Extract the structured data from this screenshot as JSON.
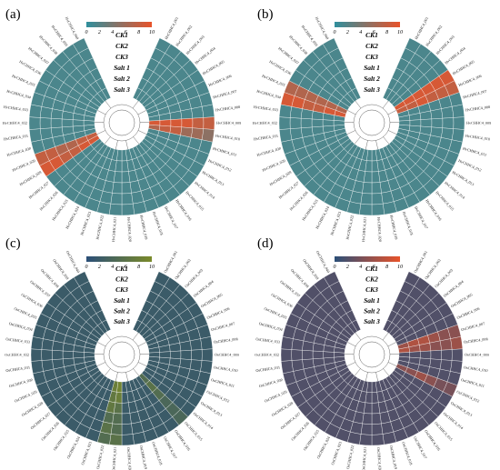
{
  "figure": {
    "colors": {
      "teal": "#2f8f9d",
      "teal_dark": "#1f6d86",
      "orange": "#e8532a",
      "pale_teal": "#7fc3cc",
      "olive": "#7a8a2a",
      "pink": "#d8679a",
      "navy": "#2b4f78"
    }
  },
  "chart_data": [
    {
      "type": "heatmap",
      "panel": "(a)",
      "rings": [
        "Salt 3",
        "Salt 2",
        "Salt 1",
        "CK3",
        "CK2",
        "CK1"
      ],
      "colorbar": {
        "ticks": [
          "0",
          "2",
          "4",
          "6",
          "8",
          "10"
        ],
        "range": [
          0,
          10
        ],
        "low_color": "#2f8f9d",
        "high_color": "#e8532a"
      },
      "gene_prefix": "HvCHHC4_0",
      "gene_count": 40,
      "background_value": 1.5,
      "highlights": [
        {
          "gene": 27,
          "values": [
            9,
            9,
            8,
            8,
            9,
            9
          ]
        },
        {
          "gene": 28,
          "values": [
            8,
            8,
            7,
            7,
            8,
            8
          ]
        },
        {
          "gene": 8,
          "values": [
            9,
            9,
            9,
            9,
            8,
            8
          ]
        },
        {
          "gene": 9,
          "values": [
            7,
            8,
            8,
            6,
            6,
            5
          ]
        }
      ]
    },
    {
      "type": "heatmap",
      "panel": "(b)",
      "rings": [
        "Salt 3",
        "Salt 2",
        "Salt 1",
        "CK3",
        "CK2",
        "CK1"
      ],
      "colorbar": {
        "ticks": [
          "0",
          "2",
          "4",
          "6",
          "8",
          "10"
        ],
        "range": [
          0,
          10
        ],
        "low_color": "#2f8f9d",
        "high_color": "#e8532a"
      },
      "gene_prefix": "HvCHHC4_0",
      "gene_count": 40,
      "background_value": 1.5,
      "highlights": [
        {
          "gene": 4,
          "values": [
            9,
            9,
            9,
            9,
            9,
            9
          ]
        },
        {
          "gene": 5,
          "values": [
            8,
            8,
            9,
            8,
            8,
            8
          ]
        },
        {
          "gene": 33,
          "values": [
            9,
            9,
            8,
            8,
            9,
            9
          ]
        },
        {
          "gene": 34,
          "values": [
            7,
            7,
            7,
            7,
            7,
            7
          ]
        }
      ]
    },
    {
      "type": "heatmap",
      "panel": "(c)",
      "rings": [
        "Salt 3",
        "Salt 2",
        "Salt 1",
        "CK3",
        "CK2",
        "CK1"
      ],
      "colorbar": {
        "ticks": [
          "0",
          "2",
          "4",
          "6",
          "8",
          "10"
        ],
        "range": [
          0,
          10
        ],
        "low_color": "#2b4f78",
        "high_color": "#7a8a2a"
      },
      "gene_prefix": "OsCHHC4_0",
      "gene_count": 40,
      "background_value": 2,
      "highlights": [
        {
          "gene": 20,
          "values": [
            9,
            8,
            6,
            5,
            5,
            6
          ]
        },
        {
          "gene": 21,
          "values": [
            8,
            7,
            7,
            5,
            6,
            5
          ]
        },
        {
          "gene": 14,
          "values": [
            5,
            6,
            5,
            4,
            4,
            4
          ]
        }
      ]
    },
    {
      "type": "heatmap",
      "panel": "(d)",
      "rings": [
        "Salt 3",
        "Salt 2",
        "Salt 1",
        "CK3",
        "CK2",
        "CK1"
      ],
      "colorbar": {
        "ticks": [
          "0",
          "2",
          "4",
          "6",
          "8",
          "10"
        ],
        "range": [
          0,
          10
        ],
        "low_color": "#2b4f78",
        "high_color": "#e8532a"
      },
      "gene_prefix": "OsCHHC4_0",
      "gene_count": 40,
      "background_value": 2,
      "highlights": [
        {
          "gene": 6,
          "values": [
            6,
            7,
            7,
            6,
            5,
            5
          ]
        },
        {
          "gene": 7,
          "values": [
            7,
            6,
            6,
            5,
            5,
            6
          ]
        },
        {
          "gene": 11,
          "values": [
            5,
            5,
            6,
            5,
            4,
            4
          ]
        }
      ]
    }
  ]
}
